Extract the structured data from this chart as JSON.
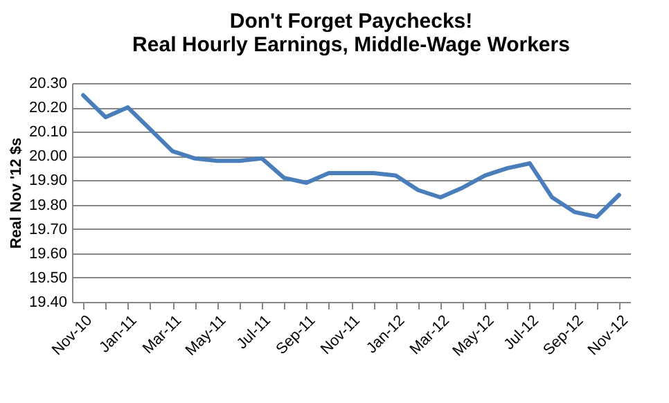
{
  "chart_data": {
    "type": "line",
    "title": "Don't Forget Paychecks! Real Hourly Earnings, Middle-Wage Workers",
    "ylabel": "Real Nov '12 $s",
    "categories": [
      "Nov-10",
      null,
      "Jan-11",
      null,
      "Mar-11",
      null,
      "May-11",
      null,
      "Jul-11",
      null,
      "Sep-11",
      null,
      "Nov-11",
      null,
      "Jan-12",
      null,
      "Mar-12",
      null,
      "May-12",
      null,
      "Jul-12",
      null,
      "Sep-12",
      null,
      "Nov-12"
    ],
    "series": [
      {
        "color": "#4a7ebb",
        "values": [
          20.25,
          20.16,
          20.2,
          20.11,
          20.02,
          19.99,
          19.98,
          19.98,
          19.99,
          19.91,
          19.89,
          19.93,
          19.93,
          19.93,
          19.92,
          19.86,
          19.83,
          19.87,
          19.92,
          19.95,
          19.97,
          19.83,
          19.77,
          19.75,
          19.84
        ]
      }
    ],
    "ylim": [
      19.4,
      20.3
    ],
    "yticks": [
      {
        "value": 19.4,
        "label": "19.40"
      },
      {
        "value": 19.5,
        "label": "19.50"
      },
      {
        "value": 19.6,
        "label": "19.60"
      },
      {
        "value": 19.7,
        "label": "19.70"
      },
      {
        "value": 19.8,
        "label": "19.80"
      },
      {
        "value": 19.9,
        "label": "19.90"
      },
      {
        "value": 20.0,
        "label": "20.00"
      },
      {
        "value": 20.1,
        "label": "20.10"
      },
      {
        "value": 20.2,
        "label": "20.20"
      },
      {
        "value": 20.3,
        "label": "20.30"
      }
    ],
    "grid": "y",
    "legend": false,
    "marker": "none",
    "line_style": "solid"
  }
}
